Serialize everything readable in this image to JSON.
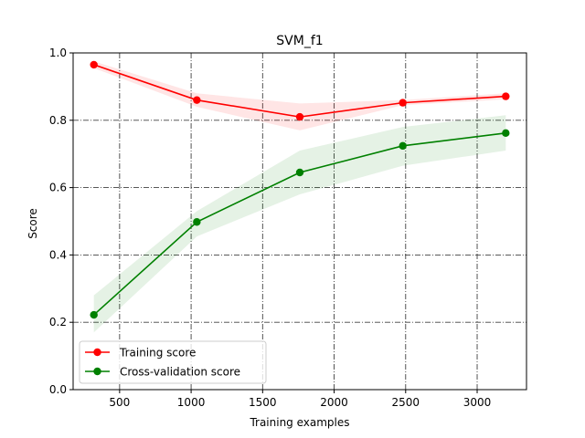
{
  "chart_data": {
    "type": "line",
    "title": "SVM_f1",
    "xlabel": "Training examples",
    "ylabel": "Score",
    "xlim": [
      175,
      3345
    ],
    "ylim": [
      0.0,
      1.0
    ],
    "xticks": [
      500,
      1000,
      1500,
      2000,
      2500,
      3000
    ],
    "yticks": [
      0.0,
      0.2,
      0.4,
      0.6,
      0.8,
      1.0
    ],
    "xtick_labels": [
      "500",
      "1000",
      "1500",
      "2000",
      "2500",
      "3000"
    ],
    "ytick_labels": [
      "0.0",
      "0.2",
      "0.4",
      "0.6",
      "0.8",
      "1.0"
    ],
    "grid": true,
    "legend_position": "lower-left",
    "x": [
      320,
      1040,
      1760,
      2480,
      3200
    ],
    "series": [
      {
        "name": "Training score",
        "color": "#ff0000",
        "fill_color": "#ff0000",
        "values": [
          0.965,
          0.86,
          0.81,
          0.852,
          0.871
        ],
        "upper": [
          0.975,
          0.88,
          0.85,
          0.86,
          0.88
        ],
        "lower": [
          0.955,
          0.84,
          0.77,
          0.845,
          0.862
        ]
      },
      {
        "name": "Cross-validation score",
        "color": "#008000",
        "fill_color": "#008000",
        "values": [
          0.222,
          0.498,
          0.645,
          0.724,
          0.762
        ],
        "upper": [
          0.28,
          0.53,
          0.71,
          0.78,
          0.815
        ],
        "lower": [
          0.17,
          0.455,
          0.58,
          0.665,
          0.71
        ]
      }
    ]
  }
}
